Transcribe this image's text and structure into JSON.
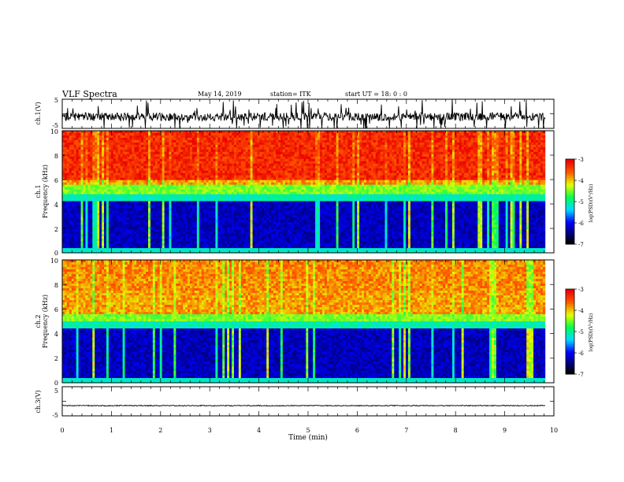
{
  "header": {
    "title": "VLF Spectra",
    "date": "May 14, 2019",
    "station": "station= ITK",
    "start": "start  UT  =    18: 0  : 0"
  },
  "chart_data": {
    "type": "heatmap",
    "x_label": "Time  (min)",
    "x_range": [
      0,
      10
    ],
    "x_ticks": [
      "0",
      "1",
      "2",
      "3",
      "4",
      "5",
      "6",
      "7",
      "8",
      "9",
      "10"
    ],
    "data_end_min": 9.82,
    "panels": [
      {
        "id": "ch1-wave",
        "kind": "line",
        "ylabel": "ch.1(V)",
        "y_range": [
          -5,
          5
        ],
        "y_ticks": [
          "5",
          "-5"
        ],
        "baseline": -1.0,
        "noise_amplitude": 1.4,
        "spikes": "frequent, both directions"
      },
      {
        "id": "ch1-spec",
        "kind": "heatmap",
        "ylabel_line1": "ch.1",
        "ylabel_line2": "Frequency  (kHz)",
        "y_range": [
          0,
          10
        ],
        "y_ticks": [
          "0",
          "2",
          "4",
          "6",
          "8",
          "10"
        ],
        "band_edges_khz": {
          "dark_top": 4.2,
          "cyan_top": 4.9,
          "yellow_top": 5.6,
          "red_above": 6.0
        },
        "colorbar": {
          "label": "log(PSD)(V²/Hz)",
          "range": [
            -7,
            -3
          ],
          "ticks": [
            "-3",
            "-4",
            "-5",
            "-6",
            "-7"
          ]
        }
      },
      {
        "id": "ch2-spec",
        "kind": "heatmap",
        "ylabel_line1": "ch.2",
        "ylabel_line2": "Frequency  (kHz)",
        "y_range": [
          0,
          10
        ],
        "y_ticks": [
          "0",
          "2",
          "4",
          "6",
          "8",
          "10"
        ],
        "band_edges_khz": {
          "dark_top": 4.4,
          "cyan_top": 5.0,
          "yellow_top": 5.6,
          "red_above": 7.5
        },
        "colorbar": {
          "label": "log(PSD)(V²/Hz)",
          "range": [
            -7,
            -3
          ],
          "ticks": [
            "-3",
            "-4",
            "-5",
            "-6",
            "-7"
          ]
        }
      },
      {
        "id": "ch3-wave",
        "kind": "line",
        "ylabel": "ch.3(V)",
        "y_range": [
          -5,
          5
        ],
        "y_ticks": [
          "5",
          "-5"
        ],
        "baseline": -1.5,
        "noise_amplitude": 0.15,
        "spikes": "none"
      }
    ]
  }
}
